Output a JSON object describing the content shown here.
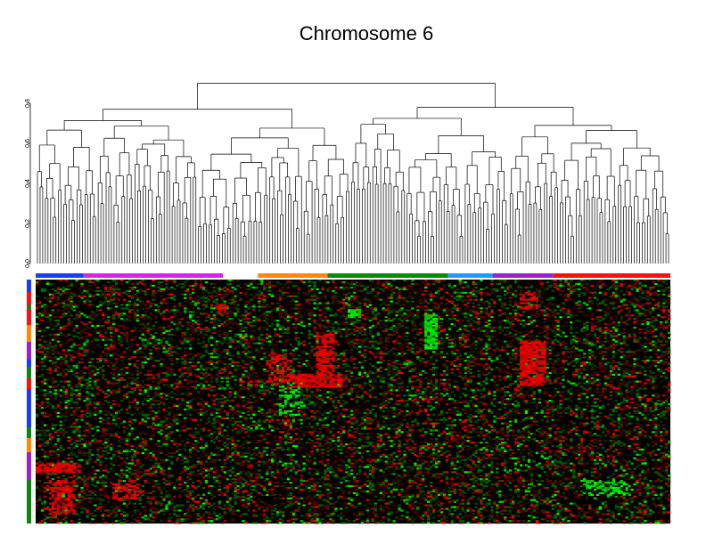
{
  "chart_data": {
    "type": "heatmap",
    "title": "Chromosome 6",
    "dendrogram": {
      "axis": "height",
      "ylim": [
        0,
        0.8
      ],
      "ticks": [
        {
          "value": 0.0,
          "label": "0.0"
        },
        {
          "value": 0.2,
          "label": "0.2"
        },
        {
          "value": 0.4,
          "label": "0.4"
        },
        {
          "value": 0.6,
          "label": "0.6"
        },
        {
          "value": 0.8,
          "label": "0.8"
        }
      ],
      "root_height": 0.9,
      "top_splits": [
        0.78,
        0.77,
        0.74,
        0.72,
        0.7,
        0.68,
        0.67,
        0.66,
        0.65,
        0.63,
        0.62
      ],
      "leaf_count": 240
    },
    "column_groups": [
      {
        "color": "#1a3cff",
        "span": 0.075
      },
      {
        "color": "#e020e0",
        "span": 0.22
      },
      {
        "color": "#ffffff",
        "span": 0.055
      },
      {
        "color": "#ff8c00",
        "span": 0.11
      },
      {
        "color": "#0a8a0a",
        "span": 0.19
      },
      {
        "color": "#1e9bff",
        "span": 0.07
      },
      {
        "color": "#9a20d0",
        "span": 0.095
      },
      {
        "color": "#ff1010",
        "span": 0.185
      }
    ],
    "row_groups": [
      "#e020e0",
      "#1e9bff",
      "#0a8a0a",
      "#1a3cff",
      "#ff8c00",
      "#9a20d0",
      "#ff1010",
      "#0a8a0a"
    ],
    "colormap": {
      "low": "#00ff00",
      "mid": "#000000",
      "high": "#ff0000"
    }
  }
}
